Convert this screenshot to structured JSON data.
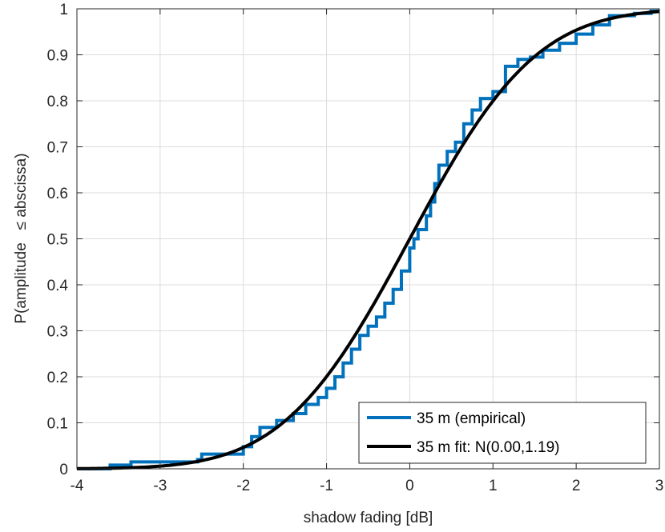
{
  "chart_data": {
    "type": "line",
    "xlabel": "shadow fading [dB]",
    "ylabel": "P(amplitude   ≤ abscissa)",
    "xlim": [
      -4,
      3
    ],
    "ylim": [
      0,
      1
    ],
    "xticks": [
      -4,
      -3,
      -2,
      -1,
      0,
      1,
      2,
      3
    ],
    "xtick_labels": [
      "-4",
      "-3",
      "-2",
      "-1",
      "0",
      "1",
      "2",
      "3"
    ],
    "yticks": [
      0,
      0.1,
      0.2,
      0.3,
      0.4,
      0.5,
      0.6,
      0.7,
      0.8,
      0.9,
      1
    ],
    "ytick_labels": [
      "0",
      "0.1",
      "0.2",
      "0.3",
      "0.4",
      "0.5",
      "0.6",
      "0.7",
      "0.8",
      "0.9",
      "1"
    ],
    "grid": true,
    "legend_position": "bottom-right",
    "series": [
      {
        "name": "35 m (empirical)",
        "color": "#0072BD",
        "style": "step",
        "x": [
          -3.8,
          -3.6,
          -3.35,
          -2.55,
          -2.5,
          -2.0,
          -1.9,
          -1.8,
          -1.6,
          -1.4,
          -1.25,
          -1.1,
          -1.0,
          -0.9,
          -0.8,
          -0.7,
          -0.6,
          -0.5,
          -0.4,
          -0.3,
          -0.2,
          -0.1,
          0.0,
          0.05,
          0.1,
          0.2,
          0.25,
          0.3,
          0.35,
          0.45,
          0.55,
          0.65,
          0.75,
          0.85,
          1.0,
          1.15,
          1.3,
          1.45,
          1.6,
          1.8,
          2.0,
          2.2,
          2.4,
          2.7,
          2.9
        ],
        "y": [
          0.0,
          0.008,
          0.015,
          0.02,
          0.032,
          0.048,
          0.07,
          0.09,
          0.105,
          0.12,
          0.14,
          0.155,
          0.175,
          0.2,
          0.23,
          0.26,
          0.29,
          0.31,
          0.33,
          0.36,
          0.39,
          0.43,
          0.48,
          0.5,
          0.52,
          0.55,
          0.58,
          0.62,
          0.66,
          0.69,
          0.71,
          0.75,
          0.78,
          0.805,
          0.82,
          0.875,
          0.89,
          0.895,
          0.91,
          0.925,
          0.945,
          0.965,
          0.985,
          0.99,
          0.995
        ]
      },
      {
        "name": "35 m fit: N(0.00,1.19)",
        "color": "#000000",
        "style": "normal-cdf",
        "mu": 0.0,
        "sigma": 1.19
      }
    ]
  }
}
